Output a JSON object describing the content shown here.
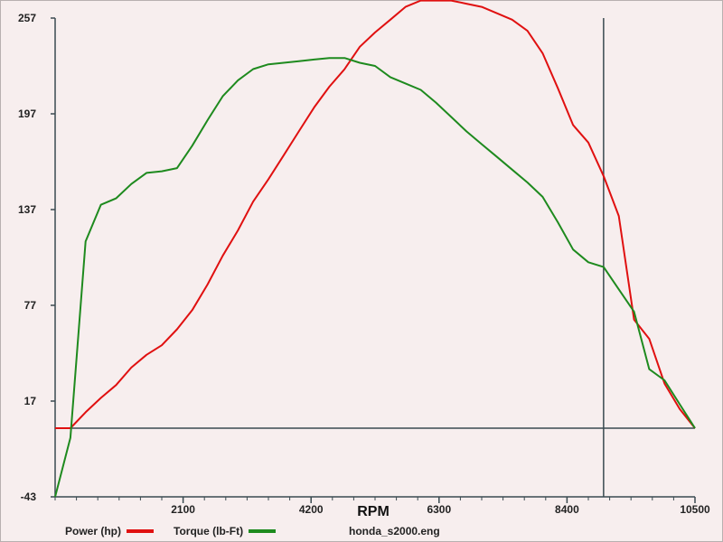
{
  "chart_data": {
    "type": "line",
    "xlabel": "RPM",
    "ylabel": "",
    "xlim": [
      0,
      10500
    ],
    "ylim": [
      -43,
      257
    ],
    "x_ticks": [
      2100,
      4200,
      6300,
      8400,
      10500
    ],
    "y_ticks": [
      -43,
      17,
      77,
      137,
      197,
      257
    ],
    "baseline_y": 0,
    "cursor_rpm": 9000,
    "series": [
      {
        "name": "Power (hp)",
        "color": "#e01010",
        "x": [
          0,
          250,
          500,
          750,
          1000,
          1250,
          1500,
          1750,
          2000,
          2250,
          2500,
          2750,
          3000,
          3250,
          3500,
          3750,
          4000,
          4250,
          4500,
          4750,
          5000,
          5250,
          5500,
          5750,
          6000,
          6250,
          6500,
          6750,
          7000,
          7250,
          7500,
          7750,
          8000,
          8250,
          8500,
          8750,
          9000,
          9250,
          9500,
          9750,
          10000,
          10250,
          10500
        ],
        "values": [
          0,
          0,
          10,
          19,
          27,
          38,
          46,
          52,
          62,
          74,
          90,
          108,
          124,
          142,
          156,
          171,
          186,
          201,
          214,
          225,
          239,
          248,
          256,
          264,
          268,
          268,
          268,
          266,
          264,
          260,
          256,
          249,
          235,
          213,
          190,
          179,
          158,
          133,
          68,
          56,
          28,
          12,
          0
        ]
      },
      {
        "name": "Torque (lb-Ft)",
        "color": "#1e8a1e",
        "x": [
          0,
          250,
          500,
          750,
          1000,
          1250,
          1500,
          1750,
          2000,
          2250,
          2500,
          2750,
          3000,
          3250,
          3500,
          3750,
          4000,
          4250,
          4500,
          4750,
          5000,
          5250,
          5500,
          5750,
          6000,
          6250,
          6500,
          6750,
          7000,
          7250,
          7500,
          7750,
          8000,
          8250,
          8500,
          8750,
          9000,
          9250,
          9500,
          9750,
          10000,
          10250,
          10500
        ],
        "values": [
          -43,
          -6,
          117,
          140,
          144,
          153,
          160,
          161,
          163,
          177,
          193,
          208,
          218,
          225,
          228,
          229,
          230,
          231,
          232,
          232,
          229,
          227,
          220,
          216,
          212,
          204,
          195,
          186,
          178,
          170,
          162,
          154,
          145,
          129,
          112,
          104,
          101,
          87,
          73,
          37,
          30,
          15,
          0
        ]
      }
    ]
  },
  "legend": {
    "power_label": "Power (hp)",
    "torque_label": "Torque (lb-Ft)",
    "file_label": "honda_s2000.eng"
  }
}
